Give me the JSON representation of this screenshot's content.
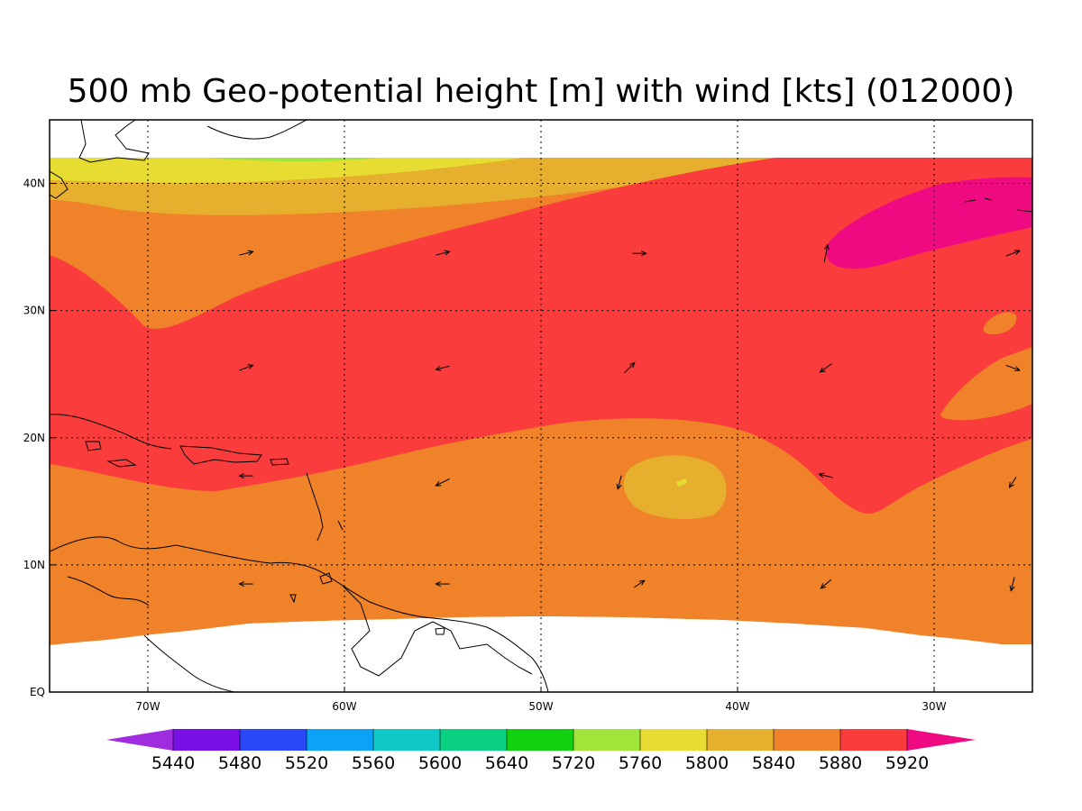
{
  "title": "500 mb Geo-potential height [m] with wind [kts] (012000)",
  "map": {
    "lon_range": [
      -75,
      -25
    ],
    "lat_range": [
      0,
      45
    ],
    "data_lat_max": 42,
    "lon_ticks": [
      {
        "value": -70,
        "label": "70W"
      },
      {
        "value": -60,
        "label": "60W"
      },
      {
        "value": -50,
        "label": "50W"
      },
      {
        "value": -40,
        "label": "40W"
      },
      {
        "value": -30,
        "label": "30W"
      }
    ],
    "lat_ticks": [
      {
        "value": 0,
        "label": "EQ"
      },
      {
        "value": 10,
        "label": "10N"
      },
      {
        "value": 20,
        "label": "20N"
      },
      {
        "value": 30,
        "label": "30N"
      },
      {
        "value": 40,
        "label": "40N"
      }
    ],
    "grid": true
  },
  "colorbar": {
    "levels": [
      "5440",
      "5480",
      "5520",
      "5560",
      "5600",
      "5640",
      "5720",
      "5760",
      "5800",
      "5840",
      "5880",
      "5920"
    ],
    "colors": [
      "#a02ce0",
      "#7a10e6",
      "#2a48f5",
      "#0ba2f7",
      "#0fc8c8",
      "#0bd282",
      "#10d20f",
      "#a0e63a",
      "#e6dc32",
      "#e6af2d",
      "#f0822a",
      "#fa3c3c",
      "#f00a82"
    ]
  },
  "wind_vectors": [
    {
      "lon": -65,
      "lat": 34.5,
      "u": 8,
      "v": 2
    },
    {
      "lon": -55,
      "lat": 34.5,
      "u": 8,
      "v": 2
    },
    {
      "lon": -45,
      "lat": 34.5,
      "u": 8,
      "v": 0
    },
    {
      "lon": -35.5,
      "lat": 34.5,
      "u": 2,
      "v": 10
    },
    {
      "lon": -26,
      "lat": 34.5,
      "u": 8,
      "v": 3
    },
    {
      "lon": -65,
      "lat": 25.5,
      "u": 8,
      "v": 3
    },
    {
      "lon": -55,
      "lat": 25.5,
      "u": -8,
      "v": -2
    },
    {
      "lon": -45.5,
      "lat": 25.5,
      "u": 6,
      "v": 6
    },
    {
      "lon": -35.5,
      "lat": 25.5,
      "u": -7,
      "v": -5
    },
    {
      "lon": -26,
      "lat": 25.5,
      "u": 8,
      "v": -3
    },
    {
      "lon": -65,
      "lat": 17,
      "u": -8,
      "v": 0
    },
    {
      "lon": -55,
      "lat": 16.5,
      "u": -8,
      "v": -4
    },
    {
      "lon": -46,
      "lat": 16.5,
      "u": -2,
      "v": -8
    },
    {
      "lon": -35.5,
      "lat": 17,
      "u": -8,
      "v": 2
    },
    {
      "lon": -26,
      "lat": 16.5,
      "u": -4,
      "v": -6
    },
    {
      "lon": -65,
      "lat": 8.5,
      "u": -8,
      "v": 0
    },
    {
      "lon": -55,
      "lat": 8.5,
      "u": -8,
      "v": 0
    },
    {
      "lon": -45,
      "lat": 8.5,
      "u": 6,
      "v": 4
    },
    {
      "lon": -35.5,
      "lat": 8.5,
      "u": -6,
      "v": -5
    },
    {
      "lon": -26,
      "lat": 8.5,
      "u": -2,
      "v": -8
    }
  ]
}
